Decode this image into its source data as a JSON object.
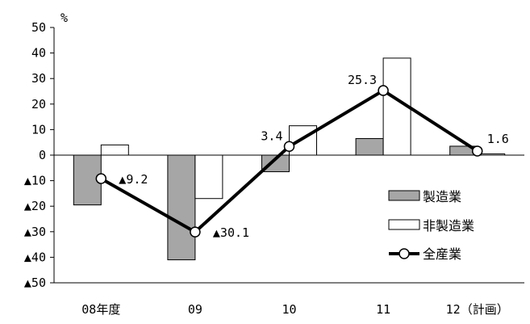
{
  "chart_data": {
    "type": "bar",
    "title": "",
    "unit_label": "%",
    "categories": [
      "08年度",
      "09",
      "10",
      "11",
      "12（計画）"
    ],
    "ylim": [
      -50,
      50
    ],
    "yticks": [
      50,
      40,
      30,
      20,
      10,
      0,
      -10,
      -20,
      -30,
      -40,
      -50
    ],
    "ytick_labels": [
      "50",
      "40",
      "30",
      "20",
      "10",
      "0",
      "▲10",
      "▲20",
      "▲30",
      "▲40",
      "▲50"
    ],
    "series": [
      {
        "name": "製造業",
        "type": "bar",
        "color": "#a6a6a6",
        "values": [
          -19.5,
          -41,
          -6.5,
          6.5,
          3.5
        ]
      },
      {
        "name": "非製造業",
        "type": "bar",
        "color": "#ffffff",
        "values": [
          4,
          -17,
          11.5,
          38,
          0.5
        ]
      },
      {
        "name": "全産業",
        "type": "line",
        "color": "#000000",
        "values": [
          -9.2,
          -30.1,
          3.4,
          25.3,
          1.6
        ],
        "labels": [
          "▲9.2",
          "▲30.1",
          "3.4",
          "25.3",
          "1.6"
        ]
      }
    ],
    "legend_position": "right-lower",
    "grid": false
  }
}
